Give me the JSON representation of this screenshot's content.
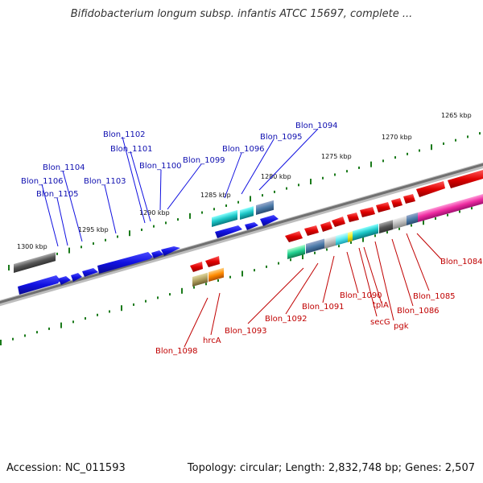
{
  "title": "Bifidobacterium longum subsp. infantis ATCC 15697, complete ...",
  "footer": {
    "accession": "Accession: NC_011593",
    "summary": "Topology: circular; Length: 2,832,748 bp; Genes: 2,507"
  },
  "kbp_ticks": [
    "1265 kbp",
    "1270 kbp",
    "1275 kbp",
    "1280 kbp",
    "1285 kbp",
    "1290 kbp",
    "1295 kbp",
    "1300 kbp"
  ],
  "top_strand_labels": [
    "Blon_1094",
    "Blon_1095",
    "Blon_1096",
    "Blon_1099",
    "Blon_1100",
    "Blon_1101",
    "Blon_1102",
    "Blon_1103",
    "Blon_1104",
    "Blon_1105",
    "Blon_1106"
  ],
  "bottom_strand_labels": [
    "Blon_1084",
    "Blon_1085",
    "Blon_1086",
    "pgk",
    "tpiA",
    "secG",
    "Blon_1090",
    "Blon_1091",
    "Blon_1092",
    "Blon_1093",
    "hrcA",
    "Blon_1098"
  ],
  "colors": {
    "forward_cds": "#1010e0",
    "reverse_cds": "#e00000",
    "backbone": "#808080",
    "tick": "#1a7a1a",
    "label_forward": "#1010b0",
    "label_reverse": "#c00000"
  }
}
